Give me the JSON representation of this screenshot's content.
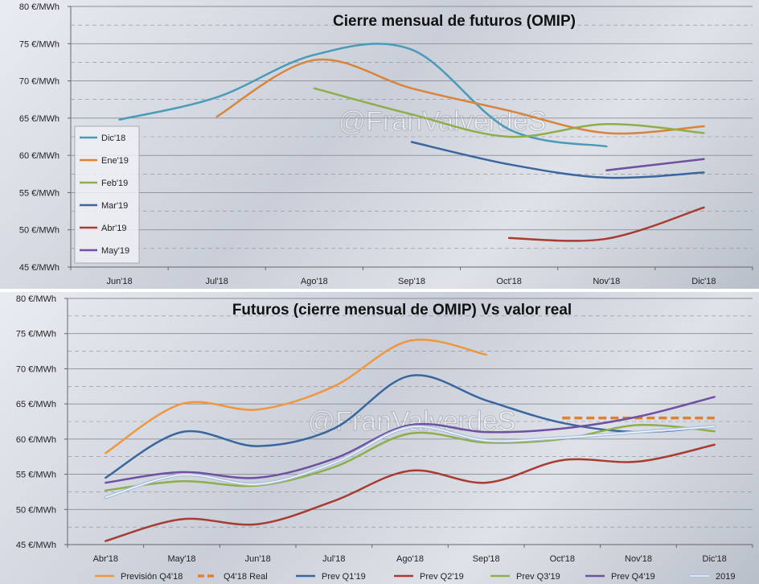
{
  "watermark": "@FranValverdeS",
  "chart_data": [
    {
      "type": "line",
      "title": "Cierre mensual de futuros (OMIP)",
      "xlabel": "",
      "ylabel": "",
      "categories": [
        "Jun'18",
        "Jul'18",
        "Ago'18",
        "Sep'18",
        "Oct'18",
        "Nov'18",
        "Dic'18"
      ],
      "ylim": [
        45,
        80
      ],
      "yticks": [
        45,
        50,
        55,
        60,
        65,
        70,
        75,
        80
      ],
      "ytick_labels": [
        "45 €/MWh",
        "50 €/MWh",
        "55 €/MWh",
        "60 €/MWh",
        "65 €/MWh",
        "70 €/MWh",
        "75 €/MWh",
        "80 €/MWh"
      ],
      "grid": true,
      "legend_position": "left",
      "series": [
        {
          "name": "Dic'18",
          "color": "#4a9ab8",
          "values": [
            64.8,
            67.8,
            73.5,
            74.2,
            63.5,
            61.2,
            null
          ]
        },
        {
          "name": "Ene'19",
          "color": "#d9843a",
          "values": [
            null,
            65.2,
            72.8,
            69.0,
            66.0,
            63.0,
            63.9
          ]
        },
        {
          "name": "Feb'19",
          "color": "#8fae4a",
          "values": [
            null,
            null,
            69.0,
            65.5,
            62.5,
            64.2,
            63.0
          ]
        },
        {
          "name": "Mar'19",
          "color": "#3a66a0",
          "values": [
            null,
            null,
            null,
            61.8,
            58.8,
            57.0,
            57.7
          ]
        },
        {
          "name": "Abr'19",
          "color": "#a83c32",
          "values": [
            null,
            null,
            null,
            null,
            48.9,
            48.8,
            53.0
          ]
        },
        {
          "name": "May'19",
          "color": "#7050a0",
          "values": [
            null,
            null,
            null,
            null,
            null,
            58.0,
            59.5
          ]
        }
      ]
    },
    {
      "type": "line",
      "title": "Futuros (cierre mensual de OMIP) Vs valor real",
      "xlabel": "",
      "ylabel": "",
      "categories": [
        "Abr'18",
        "May'18",
        "Jun'18",
        "Jul'18",
        "Ago'18",
        "Sep'18",
        "Oct'18",
        "Nov'18",
        "Dic'18"
      ],
      "ylim": [
        45,
        80
      ],
      "yticks": [
        45,
        50,
        55,
        60,
        65,
        70,
        75,
        80
      ],
      "ytick_labels": [
        "45 €/MWh",
        "50 €/MWh",
        "55 €/MWh",
        "60 €/MWh",
        "65 €/MWh",
        "70 €/MWh",
        "75 €/MWh",
        "80 €/MWh"
      ],
      "grid": true,
      "legend_position": "bottom",
      "series": [
        {
          "name": "Previsión Q4'18",
          "color": "#f0963c",
          "values": [
            58.0,
            65.0,
            64.2,
            67.5,
            74.0,
            72.0,
            null,
            null,
            null
          ]
        },
        {
          "name": "Q4'18 Real",
          "color": "#e08030",
          "dashed": true,
          "values": [
            null,
            null,
            null,
            null,
            null,
            null,
            63.0,
            63.0,
            63.0
          ]
        },
        {
          "name": "Prev Q1'19",
          "color": "#3a66a0",
          "values": [
            54.5,
            61.0,
            59.0,
            61.5,
            69.0,
            65.5,
            62.3,
            61.0,
            61.8
          ]
        },
        {
          "name": "Prev Q2'19",
          "color": "#a83c32",
          "values": [
            45.5,
            48.6,
            47.9,
            51.2,
            55.5,
            53.8,
            57.0,
            56.8,
            59.2
          ]
        },
        {
          "name": "Prev Q3'19",
          "color": "#8fae4a",
          "values": [
            52.7,
            54.0,
            53.4,
            56.0,
            60.8,
            59.5,
            60.0,
            62.0,
            61.1
          ]
        },
        {
          "name": "Prev Q4'19",
          "color": "#7050a0",
          "values": [
            53.8,
            55.3,
            54.5,
            57.2,
            62.0,
            61.0,
            61.5,
            63.2,
            66.0
          ]
        },
        {
          "name": "2019",
          "color": "#aabfdf",
          "double": true,
          "values": [
            51.7,
            54.9,
            53.6,
            56.6,
            61.7,
            59.8,
            60.2,
            61.0,
            61.8
          ]
        }
      ]
    }
  ]
}
